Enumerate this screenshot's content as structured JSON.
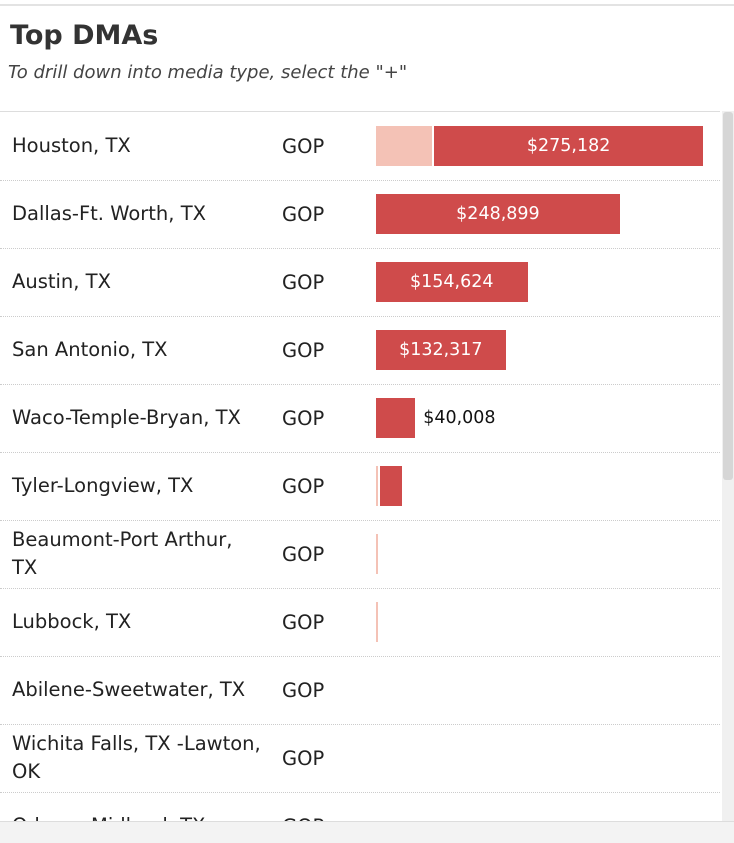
{
  "chart_data": {
    "type": "bar",
    "title": "Top DMAs",
    "subtitle": "To drill down into media type, select the \"+\"",
    "categories": [
      "Houston, TX",
      "Dallas-Ft. Worth, TX",
      "Austin, TX",
      "San Antonio, TX",
      "Waco-Temple-Bryan, TX",
      "Tyler-Longview, TX",
      "Beaumont-Port Arthur, TX",
      "Lubbock, TX",
      "Abilene-Sweetwater, TX",
      "Wichita Falls, TX -Lawton, OK",
      "Odessa-Midland, TX"
    ],
    "party": [
      "GOP",
      "GOP",
      "GOP",
      "GOP",
      "GOP",
      "GOP",
      "GOP",
      "GOP",
      "GOP",
      "GOP",
      "GOP"
    ],
    "xlim": [
      0,
      347000
    ],
    "series": [
      {
        "color": "#f4c2b6",
        "values": [
          57000,
          null,
          null,
          null,
          null,
          2000,
          2000,
          2000,
          null,
          null,
          null
        ]
      },
      {
        "color": "#cf4b4b",
        "values": [
          275182,
          248899,
          154624,
          132317,
          40008,
          22000,
          null,
          null,
          null,
          null,
          null
        ],
        "value_labels": [
          "$275,182",
          "$248,899",
          "$154,624",
          "$132,317",
          "$40,008",
          null,
          null,
          null,
          null,
          null,
          null
        ]
      }
    ]
  }
}
